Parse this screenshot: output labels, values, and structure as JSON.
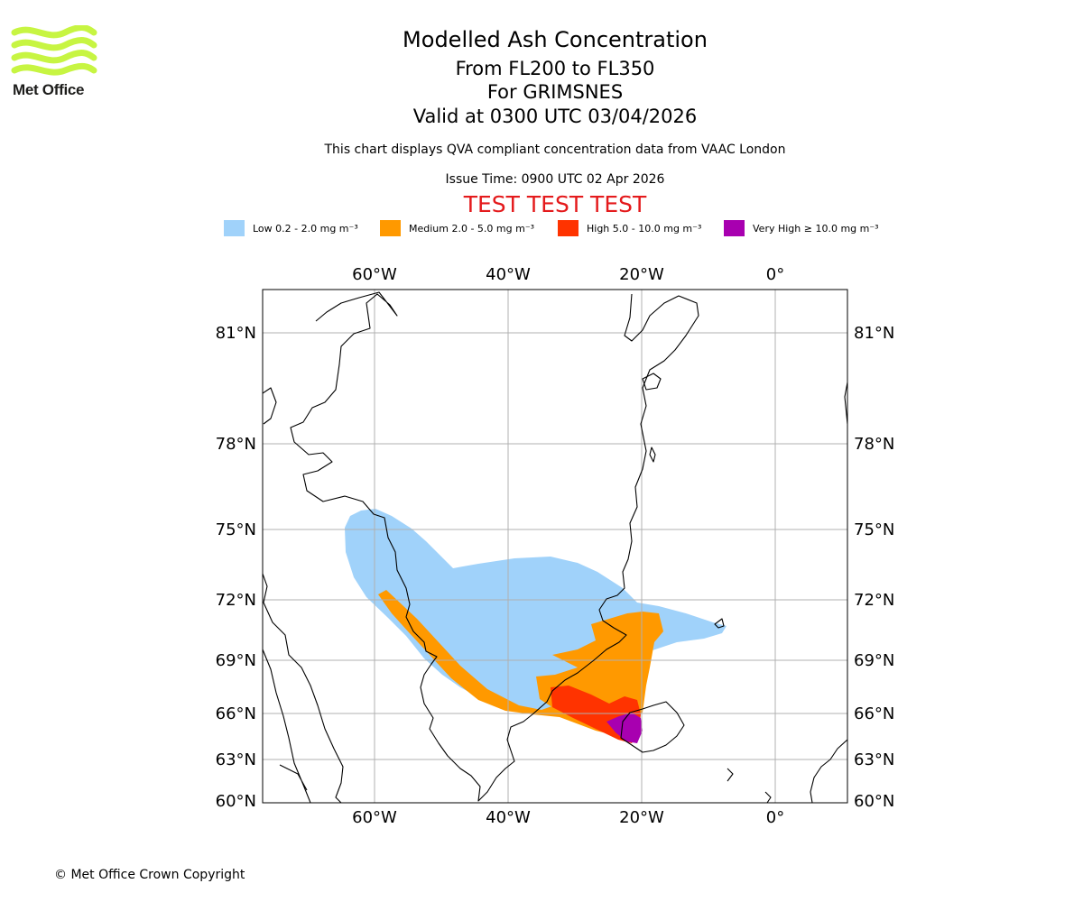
{
  "logo": {
    "text": "Met Office",
    "color": "#c7f542"
  },
  "title": "Modelled Ash Concentration",
  "subtitles": [
    "From FL200 to FL350",
    "For GRIMSNES",
    "Valid at 0300 UTC 03/04/2026"
  ],
  "description": "This chart displays QVA compliant concentration data from VAAC London",
  "issue_time": "Issue Time: 0900 UTC 02 Apr 2026",
  "test_banner": "TEST TEST TEST",
  "legend": [
    {
      "label": "Low 0.2 - 2.0 mg m⁻³",
      "color": "#a0d2fa"
    },
    {
      "label": "Medium 2.0 - 5.0 mg m⁻³",
      "color": "#ff9900"
    },
    {
      "label": "High 5.0 - 10.0 mg m⁻³",
      "color": "#ff3300"
    },
    {
      "label": "Very High  ≥  10.0 mg m⁻³",
      "color": "#a800b0"
    }
  ],
  "map": {
    "longitude_labels": [
      "60°W",
      "40°W",
      "20°W",
      "0°"
    ],
    "latitude_labels": [
      "81°N",
      "78°N",
      "75°N",
      "72°N",
      "69°N",
      "66°N",
      "63°N",
      "60°N"
    ],
    "source_volcano": "GRIMSNES"
  },
  "copyright": "© Met Office Crown Copyright"
}
